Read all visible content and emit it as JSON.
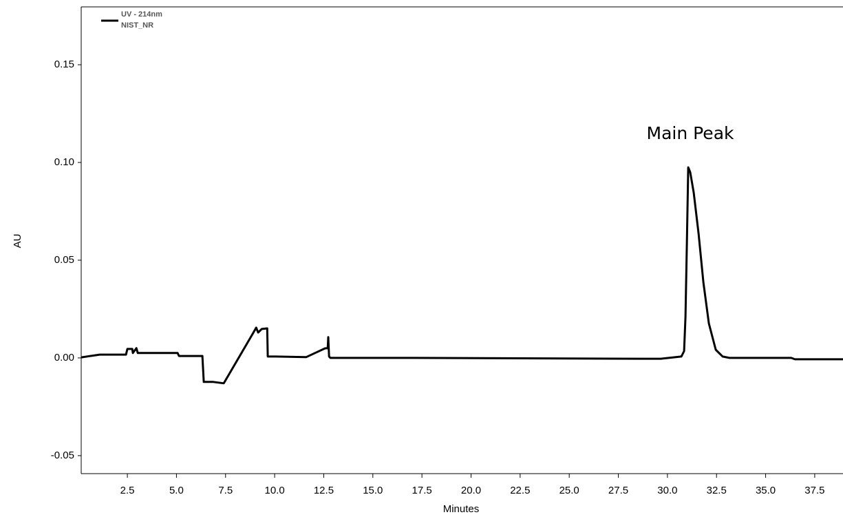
{
  "chart_data": {
    "type": "line",
    "x_label": "Minutes",
    "y_label": "AU",
    "annotations": [
      {
        "text": "Main Peak"
      }
    ],
    "series": [
      {
        "name": "UV - 214nm",
        "sample": "NIST_NR",
        "color": "#000000",
        "x": [
          0.15,
          1.1,
          2.43,
          2.5,
          2.75,
          2.78,
          2.96,
          3.03,
          5.06,
          5.13,
          6.32,
          6.39,
          6.88,
          7.41,
          8.92,
          9.06,
          9.16,
          9.34,
          9.62,
          9.65,
          10.04,
          11.6,
          12.57,
          12.7,
          12.73,
          12.77,
          12.84,
          17.05,
          28.6,
          29.66,
          30.71,
          30.85,
          30.92,
          30.99,
          31.06,
          31.16,
          31.34,
          31.59,
          31.83,
          32.11,
          32.46,
          32.81,
          33.16,
          36.31,
          36.49,
          38.94
        ],
        "values": [
          0.0003,
          0.0017,
          0.0017,
          0.0046,
          0.0046,
          0.0025,
          0.005,
          0.0025,
          0.0025,
          0.001,
          0.001,
          -0.0123,
          -0.0123,
          -0.013,
          0.013,
          0.0155,
          0.013,
          0.0148,
          0.0151,
          0.0007,
          0.0007,
          0.0004,
          0.0049,
          0.005,
          0.0106,
          0.0007,
          0.0,
          0.0,
          -0.0004,
          -0.0004,
          0.0007,
          0.0035,
          0.021,
          0.058,
          0.0975,
          0.095,
          0.0845,
          0.0634,
          0.0387,
          0.0176,
          0.0042,
          0.0007,
          0.0,
          0.0,
          -0.0007,
          -0.0007
        ]
      }
    ],
    "xlim": [
      0.15,
      38.94
    ],
    "ylim": [
      -0.0592,
      0.1796
    ],
    "xticks": [
      2.5,
      {
        "value": 5,
        "label": "5.0"
      },
      7.5,
      {
        "value": 10,
        "label": "10.0"
      },
      12.5,
      {
        "value": 15,
        "label": "15.0"
      },
      17.5,
      {
        "value": 20,
        "label": "20.0"
      },
      22.5,
      {
        "value": 25,
        "label": "25.0"
      },
      27.5,
      {
        "value": 30,
        "label": "30.0"
      },
      32.5,
      {
        "value": 35,
        "label": "35.0"
      },
      37.5
    ],
    "yticks": [
      -0.05,
      {
        "value": 0,
        "label": "0.00"
      },
      0.05,
      {
        "value": 0.1,
        "label": "0.10"
      },
      0.15
    ]
  }
}
